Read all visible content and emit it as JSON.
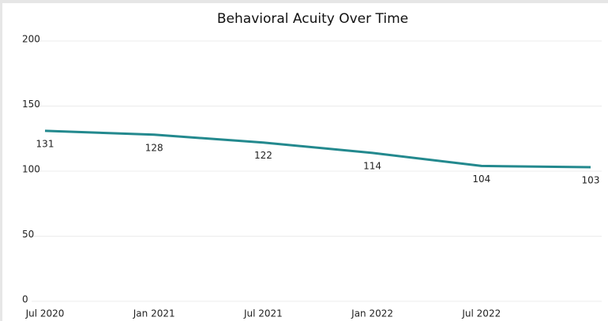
{
  "chart_data": {
    "type": "line",
    "title": "Behavioral Acuity Over Time",
    "categories": [
      "Jul 2020",
      "Jan 2021",
      "Jul 2021",
      "Jan 2022",
      "Jul 2022",
      null
    ],
    "values": [
      131,
      128,
      122,
      114,
      104,
      103
    ],
    "color": "#23898e",
    "ylim": [
      0,
      200
    ],
    "yticks": [
      0,
      50,
      100,
      150,
      200
    ],
    "grid": true
  }
}
